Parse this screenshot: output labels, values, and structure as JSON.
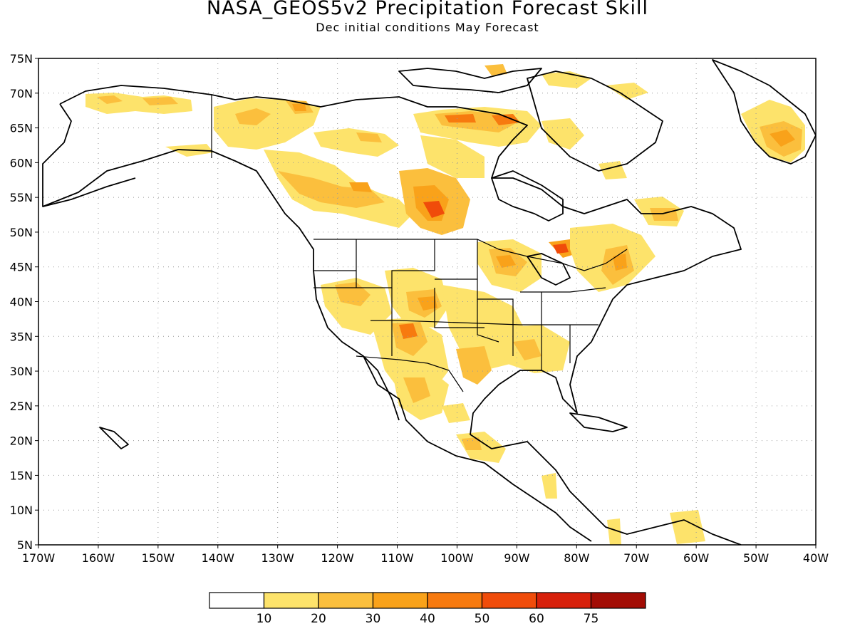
{
  "title": "NASA_GEOS5v2 Precipitation Forecast Skill",
  "subtitle": "Dec initial conditions   May Forecast",
  "map": {
    "lon_range": [
      -170,
      -40
    ],
    "lat_range": [
      5,
      75
    ],
    "lat_labels": [
      "75N",
      "70N",
      "65N",
      "60N",
      "55N",
      "50N",
      "45N",
      "40N",
      "35N",
      "30N",
      "25N",
      "20N",
      "15N",
      "10N",
      "5N"
    ],
    "lon_labels": [
      "170W",
      "160W",
      "150W",
      "140W",
      "130W",
      "120W",
      "110W",
      "100W",
      "90W",
      "80W",
      "70W",
      "60W",
      "50W",
      "40W"
    ],
    "grid": "dotted",
    "coastline_color": "#000000"
  },
  "colorbar": {
    "labels": [
      "10",
      "20",
      "30",
      "40",
      "50",
      "60",
      "75"
    ],
    "colors": [
      "#ffffff",
      "#fde36b",
      "#fbbf3d",
      "#f9a21a",
      "#f77a0f",
      "#f04c0a",
      "#d7200a",
      "#a30d05"
    ]
  }
}
